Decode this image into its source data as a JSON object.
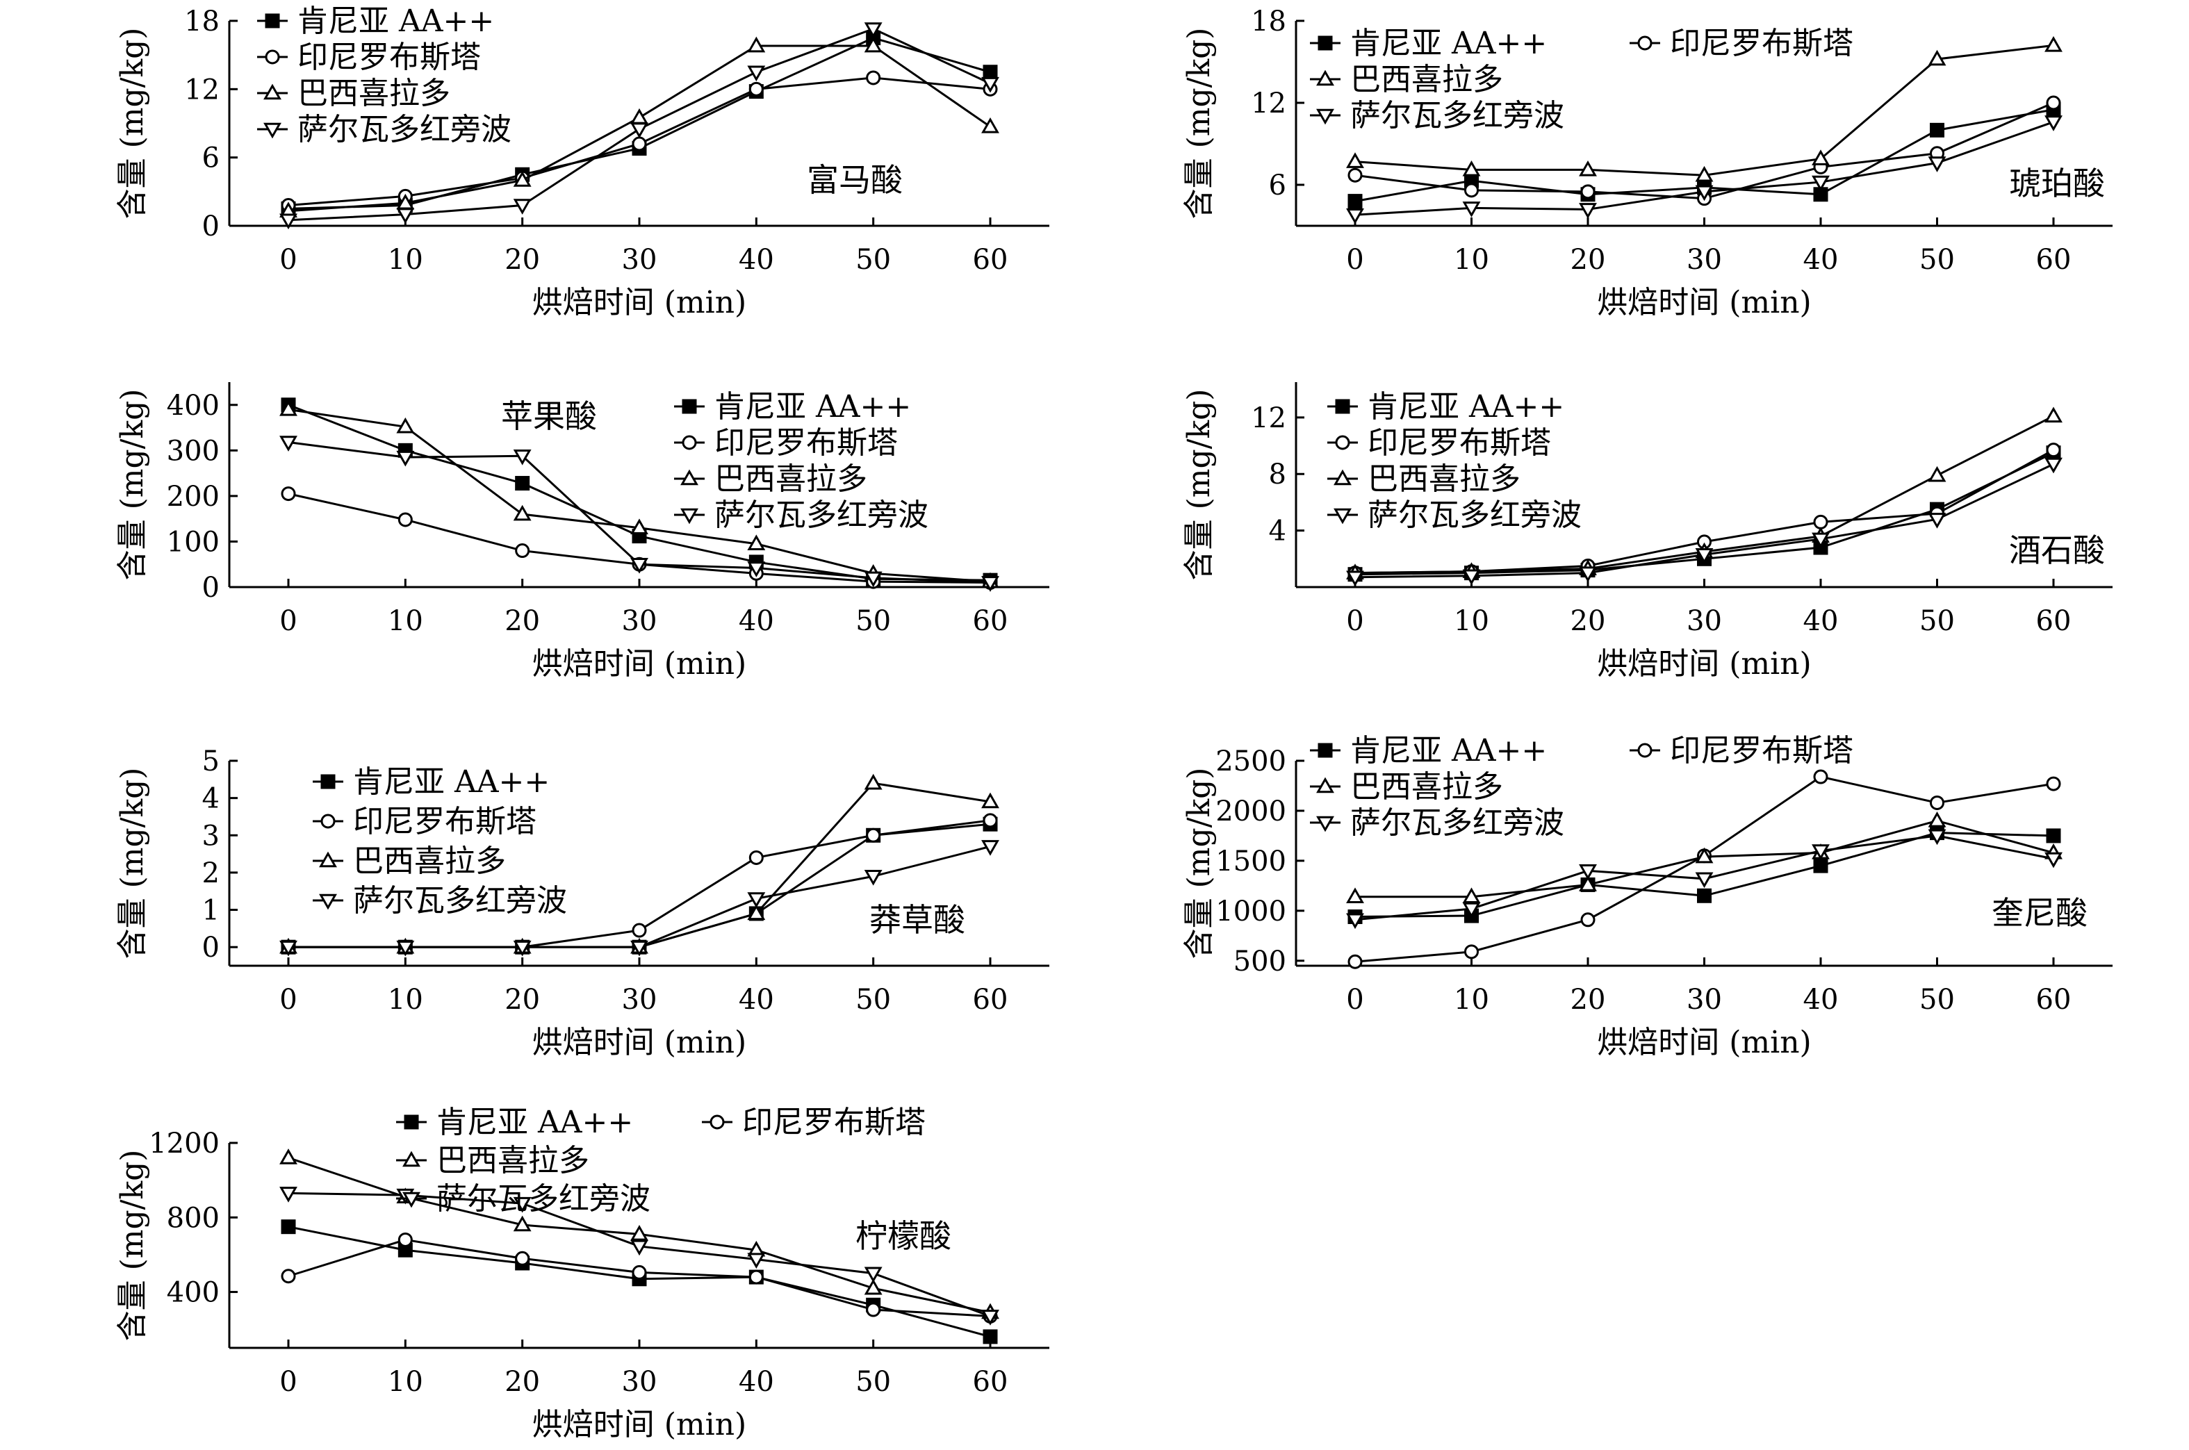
{
  "chart_data": [
    {
      "type": "line",
      "title": "富马酸",
      "xlabel": "烘焙时间 (min)",
      "ylabel": "含量 (mg/kg)",
      "x": [
        0,
        10,
        20,
        30,
        40,
        50,
        60
      ],
      "xticks": [
        0,
        10,
        20,
        30,
        40,
        50,
        60
      ],
      "yticks": [
        0,
        6,
        12,
        18
      ],
      "ylim": [
        0,
        18
      ],
      "legend_placement": "top-left",
      "series": [
        {
          "name": "肯尼亚 AA++",
          "marker": "square-filled",
          "values": [
            1.5,
            1.8,
            4.5,
            6.8,
            11.8,
            16.5,
            13.5
          ]
        },
        {
          "name": "印尼罗布斯塔",
          "marker": "circle-open",
          "values": [
            1.8,
            2.6,
            4.2,
            7.2,
            12.0,
            13.0,
            12.0
          ]
        },
        {
          "name": "巴西喜拉多",
          "marker": "triangle-up-open",
          "values": [
            1.3,
            2.0,
            4.0,
            9.5,
            15.8,
            15.8,
            8.7
          ]
        },
        {
          "name": "萨尔瓦多红旁波",
          "marker": "triangle-down-open",
          "values": [
            0.5,
            1.0,
            1.8,
            8.5,
            13.5,
            17.3,
            12.5
          ]
        }
      ]
    },
    {
      "type": "line",
      "title": "琥珀酸",
      "xlabel": "烘焙时间 (min)",
      "ylabel": "含量 (mg/kg)",
      "x": [
        0,
        10,
        20,
        30,
        40,
        50,
        60
      ],
      "xticks": [
        0,
        10,
        20,
        30,
        40,
        50,
        60
      ],
      "yticks": [
        6,
        12,
        18
      ],
      "ylim": [
        3,
        18
      ],
      "legend_placement": "top-left",
      "series": [
        {
          "name": "肯尼亚 AA++",
          "marker": "square-filled",
          "values": [
            4.8,
            6.3,
            5.3,
            5.8,
            5.3,
            10.0,
            11.5
          ]
        },
        {
          "name": "印尼罗布斯塔",
          "marker": "circle-open",
          "values": [
            6.7,
            5.6,
            5.5,
            5.0,
            7.3,
            8.3,
            12.0
          ]
        },
        {
          "name": "巴西喜拉多",
          "marker": "triangle-up-open",
          "values": [
            7.7,
            7.1,
            7.1,
            6.7,
            7.9,
            15.2,
            16.2
          ]
        },
        {
          "name": "萨尔瓦多红旁波",
          "marker": "triangle-down-open",
          "values": [
            3.8,
            4.3,
            4.2,
            5.5,
            6.2,
            7.6,
            10.6
          ]
        }
      ]
    },
    {
      "type": "line",
      "title": "苹果酸",
      "xlabel": "烘焙时间 (min)",
      "ylabel": "含量 (mg/kg)",
      "x": [
        0,
        10,
        20,
        30,
        40,
        50,
        60
      ],
      "xticks": [
        0,
        10,
        20,
        30,
        40,
        50,
        60
      ],
      "yticks": [
        0,
        100,
        200,
        300,
        400
      ],
      "ylim": [
        0,
        450
      ],
      "legend_placement": "top-right",
      "series": [
        {
          "name": "肯尼亚 AA++",
          "marker": "square-filled",
          "values": [
            400,
            300,
            228,
            112,
            55,
            18,
            15
          ]
        },
        {
          "name": "印尼罗布斯塔",
          "marker": "circle-open",
          "values": [
            205,
            148,
            80,
            50,
            30,
            12,
            10
          ]
        },
        {
          "name": "巴西喜拉多",
          "marker": "triangle-up-open",
          "values": [
            390,
            352,
            160,
            130,
            95,
            30,
            12
          ]
        },
        {
          "name": "萨尔瓦多红旁波",
          "marker": "triangle-down-open",
          "values": [
            318,
            285,
            288,
            50,
            42,
            20,
            10
          ]
        }
      ]
    },
    {
      "type": "line",
      "title": "酒石酸",
      "xlabel": "烘焙时间 (min)",
      "ylabel": "含量 (mg/kg)",
      "x": [
        0,
        10,
        20,
        30,
        40,
        50,
        60
      ],
      "xticks": [
        0,
        10,
        20,
        30,
        40,
        50,
        60
      ],
      "yticks": [
        4,
        8,
        12
      ],
      "ylim": [
        0,
        14.5
      ],
      "legend_placement": "top-left",
      "series": [
        {
          "name": "肯尼亚 AA++",
          "marker": "square-filled",
          "values": [
            0.9,
            1.0,
            1.2,
            2.0,
            2.8,
            5.5,
            9.5
          ]
        },
        {
          "name": "印尼罗布斯塔",
          "marker": "circle-open",
          "values": [
            1.0,
            1.1,
            1.5,
            3.2,
            4.6,
            5.2,
            9.7
          ]
        },
        {
          "name": "巴西喜拉多",
          "marker": "triangle-up-open",
          "values": [
            1.0,
            1.1,
            1.3,
            2.5,
            3.6,
            7.9,
            12.1
          ]
        },
        {
          "name": "萨尔瓦多红旁波",
          "marker": "triangle-down-open",
          "values": [
            0.7,
            0.8,
            1.0,
            2.3,
            3.4,
            4.8,
            8.7
          ]
        }
      ]
    },
    {
      "type": "line",
      "title": "莽草酸",
      "xlabel": "烘焙时间 (min)",
      "ylabel": "含量 (mg/kg)",
      "x": [
        0,
        10,
        20,
        30,
        40,
        50,
        60
      ],
      "xticks": [
        0,
        10,
        20,
        30,
        40,
        50,
        60
      ],
      "yticks": [
        0,
        1,
        2,
        3,
        4,
        5
      ],
      "ylim": [
        -0.5,
        5
      ],
      "legend_placement": "top-left",
      "series": [
        {
          "name": "肯尼亚 AA++",
          "marker": "square-filled",
          "values": [
            0,
            0,
            0,
            0,
            0.9,
            3.0,
            3.3
          ]
        },
        {
          "name": "印尼罗布斯塔",
          "marker": "circle-open",
          "values": [
            0,
            0,
            0,
            0.45,
            2.4,
            3.0,
            3.4
          ]
        },
        {
          "name": "巴西喜拉多",
          "marker": "triangle-up-open",
          "values": [
            0,
            0,
            0,
            0,
            0.9,
            4.4,
            3.9
          ]
        },
        {
          "name": "萨尔瓦多红旁波",
          "marker": "triangle-down-open",
          "values": [
            0,
            0,
            0,
            0,
            1.3,
            1.9,
            2.7
          ]
        }
      ]
    },
    {
      "type": "line",
      "title": "奎尼酸",
      "xlabel": "烘焙时间 (min)",
      "ylabel": "含量 (mg/kg)",
      "x": [
        0,
        10,
        20,
        30,
        40,
        50,
        60
      ],
      "xticks": [
        0,
        10,
        20,
        30,
        40,
        50,
        60
      ],
      "yticks": [
        500,
        1000,
        1500,
        2000,
        2500
      ],
      "ylim": [
        450,
        2500
      ],
      "legend_placement": "top-left",
      "series": [
        {
          "name": "肯尼亚 AA++",
          "marker": "square-filled",
          "values": [
            940,
            950,
            1260,
            1150,
            1450,
            1780,
            1750
          ]
        },
        {
          "name": "印尼罗布斯塔",
          "marker": "circle-open",
          "values": [
            490,
            590,
            910,
            1550,
            2340,
            2080,
            2270
          ]
        },
        {
          "name": "巴西喜拉多",
          "marker": "triangle-up-open",
          "values": [
            1140,
            1140,
            1260,
            1540,
            1580,
            1900,
            1580
          ]
        },
        {
          "name": "萨尔瓦多红旁波",
          "marker": "triangle-down-open",
          "values": [
            910,
            1020,
            1400,
            1320,
            1600,
            1750,
            1520
          ]
        }
      ]
    },
    {
      "type": "line",
      "title": "柠檬酸",
      "xlabel": "烘焙时间 (min)",
      "ylabel": "含量 (mg/kg)",
      "x": [
        0,
        10,
        20,
        30,
        40,
        50,
        60
      ],
      "xticks": [
        0,
        10,
        20,
        30,
        40,
        50,
        60
      ],
      "yticks": [
        400,
        800,
        1200
      ],
      "ylim": [
        100,
        1200
      ],
      "legend_placement": "top-right",
      "series": [
        {
          "name": "肯尼亚 AA++",
          "marker": "square-filled",
          "values": [
            750,
            625,
            555,
            470,
            480,
            330,
            160
          ]
        },
        {
          "name": "印尼罗布斯塔",
          "marker": "circle-open",
          "values": [
            485,
            680,
            580,
            505,
            480,
            305,
            270
          ]
        },
        {
          "name": "巴西喜拉多",
          "marker": "triangle-up-open",
          "values": [
            1120,
            910,
            760,
            710,
            625,
            420,
            290
          ]
        },
        {
          "name": "萨尔瓦多红旁波",
          "marker": "triangle-down-open",
          "values": [
            930,
            920,
            875,
            645,
            575,
            500,
            270
          ]
        }
      ]
    }
  ]
}
